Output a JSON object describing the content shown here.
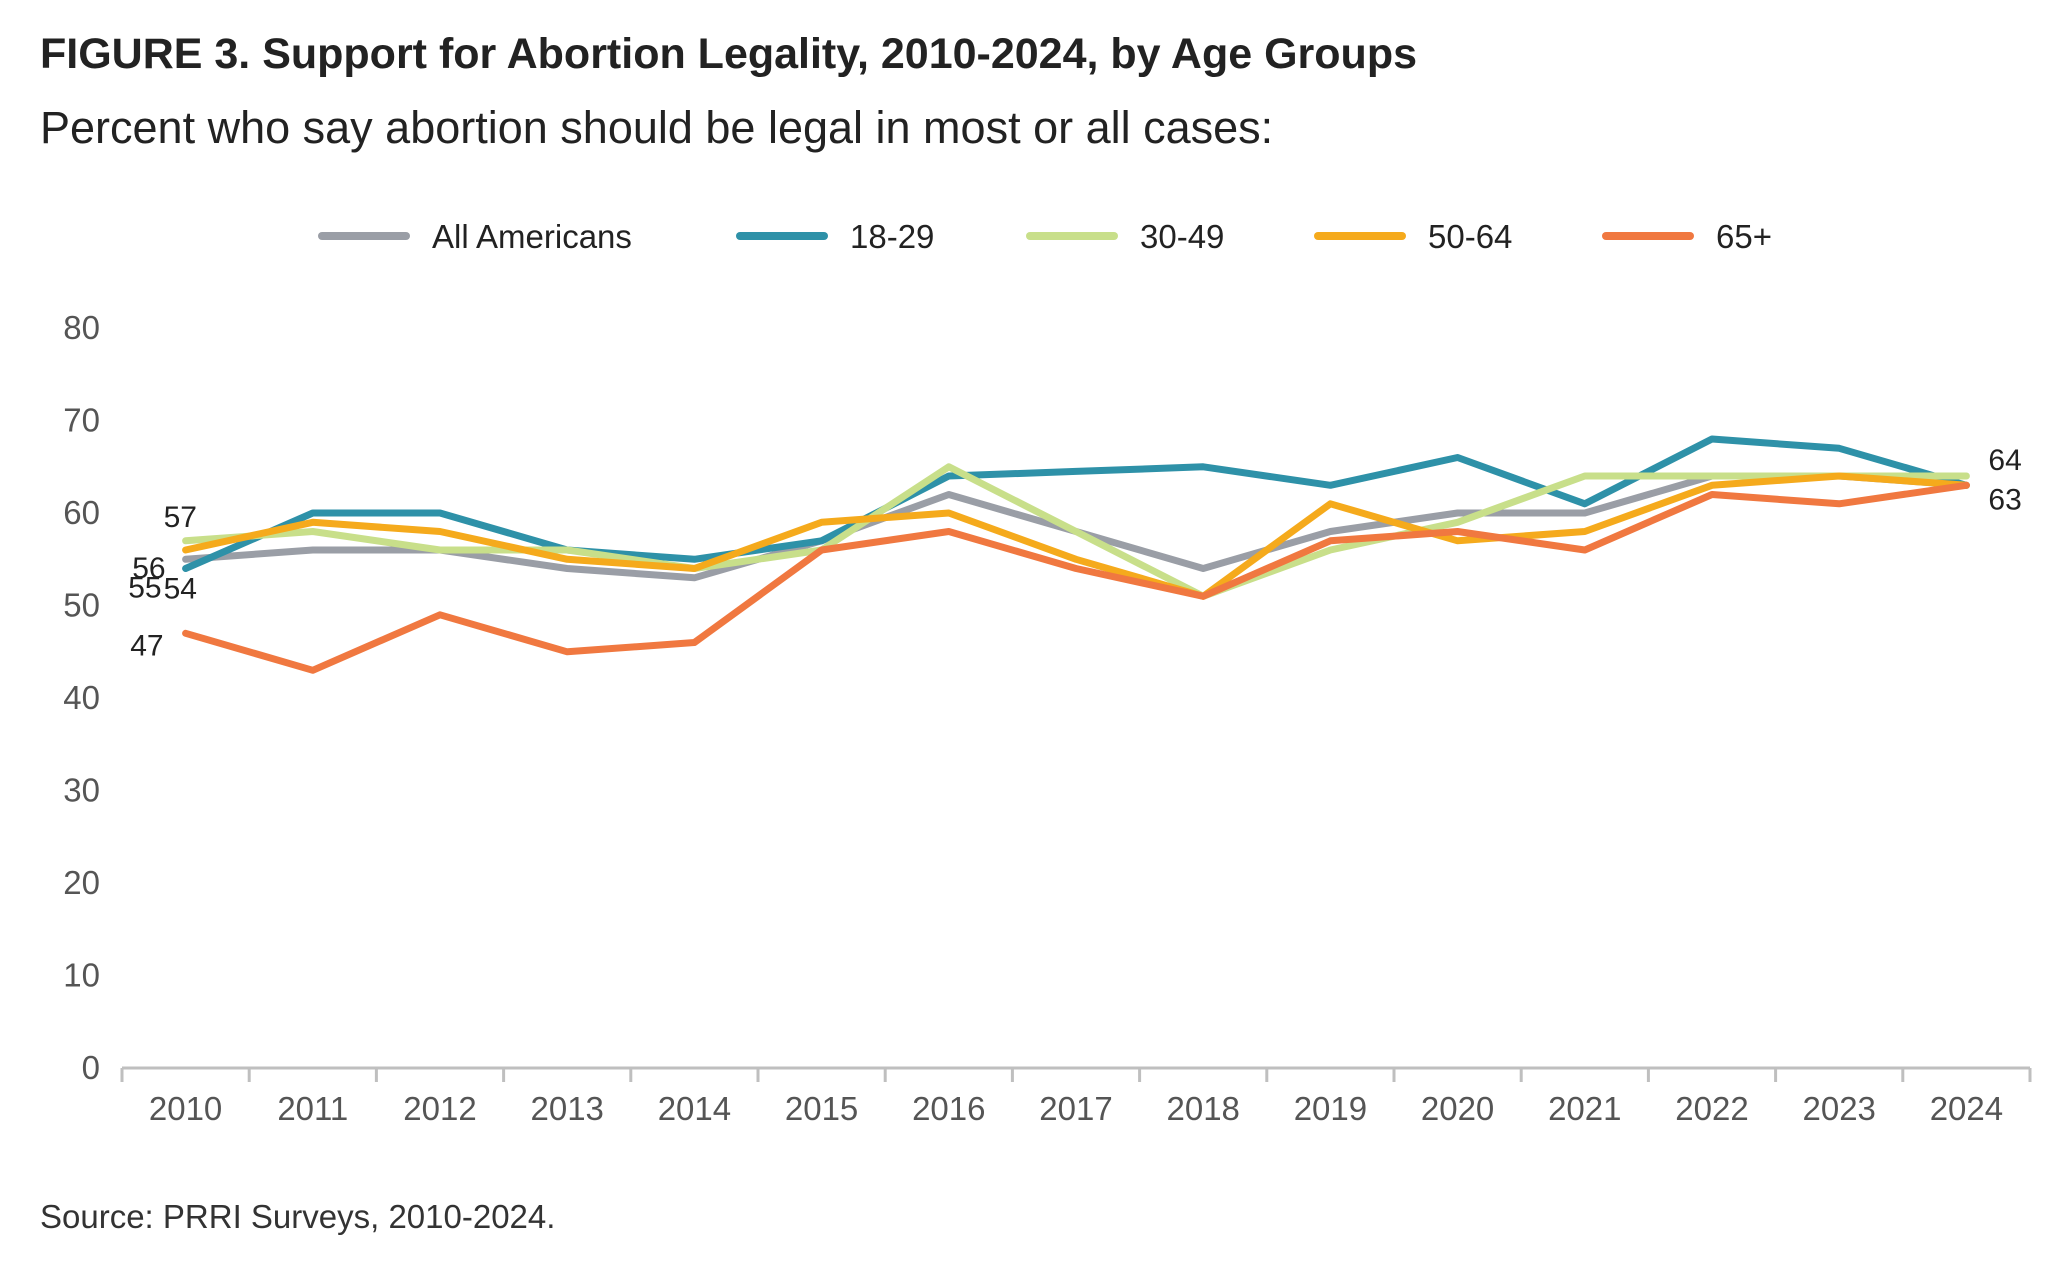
{
  "header": {
    "title": "FIGURE 3. Support for Abortion Legality, 2010-2024, by Age Groups",
    "subtitle": "Percent who say abortion should be legal in most or all cases:"
  },
  "footer": {
    "source": "Source: PRRI Surveys, 2010-2024."
  },
  "chart_data": {
    "type": "line",
    "title": "FIGURE 3. Support for Abortion Legality, 2010-2024, by Age Groups",
    "subtitle": "Percent who say abortion should be legal in most or all cases:",
    "xlabel": "",
    "ylabel": "",
    "ylim": [
      0,
      80
    ],
    "yticks": [
      0,
      10,
      20,
      30,
      40,
      50,
      60,
      70,
      80
    ],
    "categories": [
      "2010",
      "2011",
      "2012",
      "2013",
      "2014",
      "2015",
      "2016",
      "2017",
      "2018",
      "2019",
      "2020",
      "2021",
      "2022",
      "2023",
      "2024"
    ],
    "legend_position": "top-center",
    "grid": false,
    "series": [
      {
        "name": "All Americans",
        "color": "#9a9ea6",
        "values": [
          55,
          56,
          56,
          54,
          53,
          57,
          62,
          58,
          54,
          58,
          60,
          60,
          64,
          64,
          63
        ]
      },
      {
        "name": "18-29",
        "color": "#2e91a8",
        "values": [
          54,
          60,
          60,
          56,
          55,
          57,
          64,
          64.5,
          65,
          63,
          66,
          61,
          68,
          67,
          63
        ]
      },
      {
        "name": "30-49",
        "color": "#c8df8a",
        "values": [
          57,
          58,
          56,
          56,
          54,
          56,
          65,
          58,
          51,
          56,
          59,
          64,
          64,
          64,
          64
        ]
      },
      {
        "name": "50-64",
        "color": "#f5aa1c",
        "values": [
          56,
          59,
          58,
          55,
          54,
          59,
          60,
          55,
          51,
          61,
          57,
          58,
          63,
          64,
          63
        ]
      },
      {
        "name": "65+",
        "color": "#f07840",
        "values": [
          47,
          43,
          49,
          45,
          46,
          56,
          58,
          54,
          51,
          57,
          58,
          56,
          62,
          61,
          63
        ]
      }
    ],
    "data_labels": [
      {
        "text": "57",
        "category": "2010",
        "value": 57
      },
      {
        "text": "56",
        "category": "2010",
        "value": 56
      },
      {
        "text": "55",
        "category": "2010",
        "value": 55
      },
      {
        "text": "54",
        "category": "2010",
        "value": 54
      },
      {
        "text": "47",
        "category": "2010",
        "value": 47
      },
      {
        "text": "64",
        "category": "2024",
        "value": 64
      },
      {
        "text": "63",
        "category": "2024",
        "value": 63
      }
    ]
  }
}
